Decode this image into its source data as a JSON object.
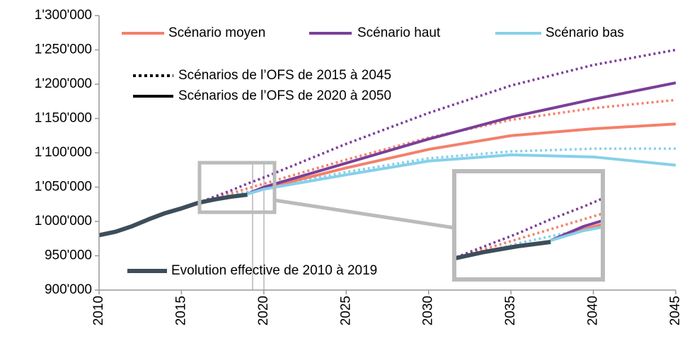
{
  "chart_data": {
    "type": "line",
    "x": [
      2010,
      2011,
      2012,
      2013,
      2014,
      2015,
      2016,
      2017,
      2018,
      2019,
      2020,
      2025,
      2030,
      2035,
      2040,
      2045
    ],
    "xlim": [
      2010,
      2045
    ],
    "xticks": [
      2010,
      2015,
      2020,
      2025,
      2030,
      2035,
      2040,
      2045
    ],
    "ylim": [
      900000,
      1300000
    ],
    "yticks": [
      {
        "value": 900000,
        "label": "900'000"
      },
      {
        "value": 950000,
        "label": "950'000"
      },
      {
        "value": 1000000,
        "label": "1'000'000"
      },
      {
        "value": 1050000,
        "label": "1'050'000"
      },
      {
        "value": 1100000,
        "label": "1'100'000"
      },
      {
        "value": 1150000,
        "label": "1'150'000"
      },
      {
        "value": 1200000,
        "label": "1'200'000"
      },
      {
        "value": 1250000,
        "label": "1'250'000"
      },
      {
        "value": 1300000,
        "label": "1'300'000"
      }
    ],
    "series": [
      {
        "name": "Scénario moyen",
        "color": "#f4806a",
        "dotted_values": [
          null,
          null,
          null,
          null,
          null,
          null,
          1027000,
          1034000,
          1041000,
          1048000,
          1055000,
          1090000,
          1122000,
          1148000,
          1165000,
          1177000
        ],
        "values": [
          null,
          null,
          null,
          null,
          null,
          null,
          null,
          null,
          null,
          1040000,
          1048000,
          1078000,
          1105000,
          1125000,
          1135000,
          1142000
        ]
      },
      {
        "name": "Scénario haut",
        "color": "#7b3f98",
        "dotted_values": [
          null,
          null,
          null,
          null,
          null,
          null,
          1027000,
          1036000,
          1045000,
          1055000,
          1064000,
          1113000,
          1158000,
          1198000,
          1228000,
          1250000
        ],
        "values": [
          null,
          null,
          null,
          null,
          null,
          null,
          null,
          null,
          null,
          1040000,
          1050000,
          1085000,
          1120000,
          1152000,
          1178000,
          1202000
        ]
      },
      {
        "name": "Scénario bas",
        "color": "#86d0ea",
        "dotted_values": [
          null,
          null,
          null,
          null,
          null,
          null,
          1027000,
          1032000,
          1038000,
          1043000,
          1048000,
          1072000,
          1092000,
          1102000,
          1106000,
          1106000
        ],
        "values": [
          null,
          null,
          null,
          null,
          null,
          null,
          null,
          null,
          null,
          1040000,
          1047000,
          1068000,
          1088000,
          1097000,
          1094000,
          1082000
        ]
      }
    ],
    "history": {
      "name": "Evolution effective de 2010 à 2019",
      "color": "#3d4d5a",
      "values": [
        980000,
        985000,
        993000,
        1003000,
        1012000,
        1019000,
        1027000,
        1032000,
        1036000,
        1039000,
        null,
        null,
        null,
        null,
        null,
        null
      ]
    },
    "line_styles": [
      {
        "label": "Scénarios de l’OFS de 2015 à 2045",
        "dash": "dotted"
      },
      {
        "label": "Scénarios de l’OFS de 2020 à 2050",
        "dash": "solid"
      }
    ]
  }
}
